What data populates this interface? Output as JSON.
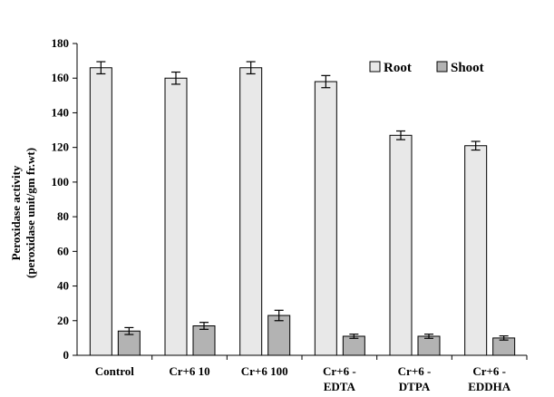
{
  "chart_data": {
    "type": "bar",
    "title": "",
    "xlabel": "",
    "ylabel_line1": "Peroxidase activity",
    "ylabel_line2": "(peroxidase unit/gm fr.wt)",
    "ylim": [
      0,
      180
    ],
    "yticks": [
      0,
      20,
      40,
      60,
      80,
      100,
      120,
      140,
      160,
      180
    ],
    "categories": [
      [
        "Control"
      ],
      [
        "Cr+6 10"
      ],
      [
        "Cr+6 100"
      ],
      [
        "Cr+6 -",
        "EDTA"
      ],
      [
        "Cr+6 -",
        "DTPA"
      ],
      [
        "Cr+6 -",
        "EDDHA"
      ]
    ],
    "series": [
      {
        "name": "Root",
        "color": "#e8e8e8",
        "values": [
          166,
          160,
          166,
          158,
          127,
          121
        ],
        "errors": [
          3.5,
          3.5,
          3.5,
          3.5,
          2.5,
          2.5
        ]
      },
      {
        "name": "Shoot",
        "color": "#b3b3b3",
        "values": [
          14,
          17,
          23,
          11,
          11,
          10
        ],
        "errors": [
          2,
          2,
          3,
          1.2,
          1.2,
          1.2
        ]
      }
    ],
    "legend_position": "top-right",
    "grid": false
  }
}
